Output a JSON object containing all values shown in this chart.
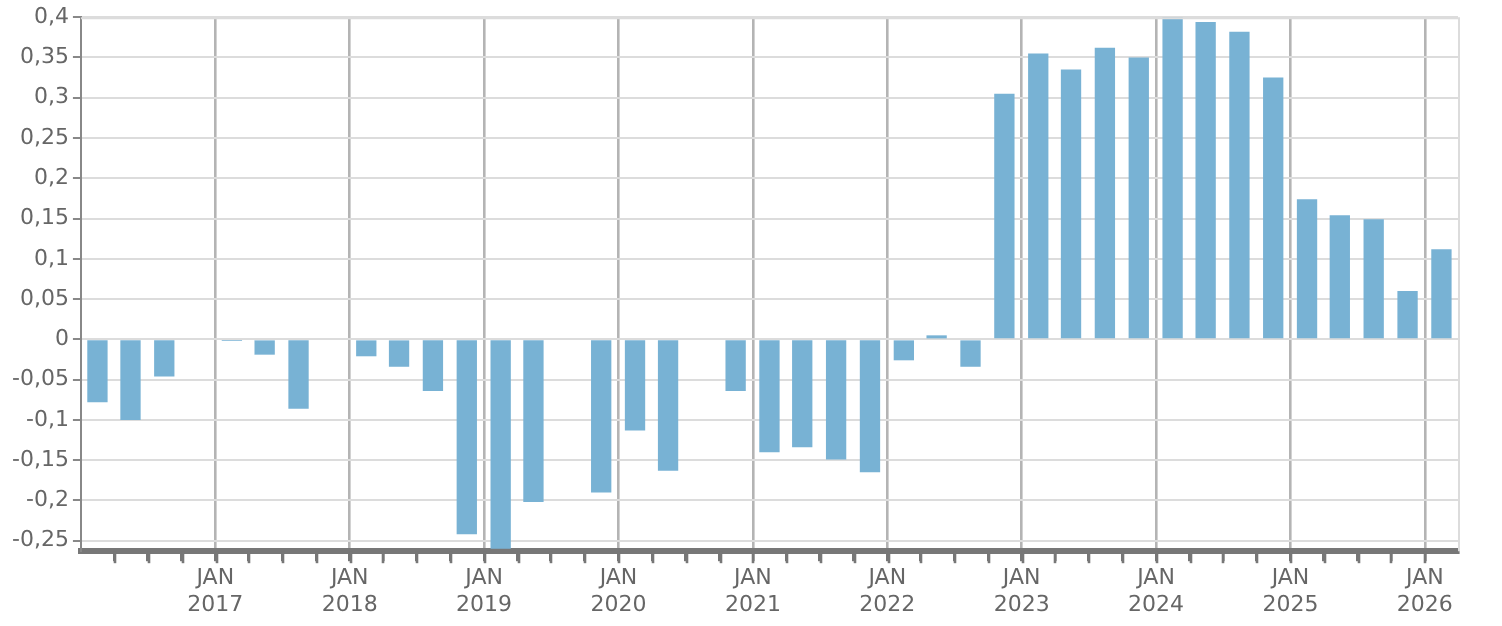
{
  "chart_data": {
    "type": "bar",
    "x": [
      "2016-02-15",
      "2016-05-15",
      "2016-08-15",
      "2016-11-15",
      "2017-02-15",
      "2017-05-15",
      "2017-08-15",
      "2017-11-15",
      "2018-02-15",
      "2018-05-15",
      "2018-08-15",
      "2018-11-15",
      "2019-02-15",
      "2019-05-15",
      "2019-08-15",
      "2019-11-15",
      "2020-02-15",
      "2020-05-15",
      "2020-08-15",
      "2020-11-15",
      "2021-02-15",
      "2021-05-15",
      "2021-08-15",
      "2021-11-15",
      "2022-02-15",
      "2022-05-15",
      "2022-08-15",
      "2022-11-15",
      "2023-02-15",
      "2023-05-15",
      "2023-08-15",
      "2023-11-15",
      "2024-02-15",
      "2024-05-15",
      "2024-08-15",
      "2024-11-15",
      "2025-02-15",
      "2025-05-15",
      "2025-08-15",
      "2025-11-15",
      "2026-02-15"
    ],
    "values": [
      -0.078,
      -0.1,
      -0.046,
      null,
      -0.002,
      -0.019,
      -0.086,
      null,
      -0.021,
      -0.034,
      -0.064,
      -0.242,
      -0.26,
      -0.202,
      null,
      -0.19,
      -0.113,
      -0.163,
      null,
      -0.064,
      -0.14,
      -0.134,
      -0.149,
      -0.165,
      -0.026,
      0.005,
      -0.034,
      0.305,
      0.355,
      0.335,
      0.362,
      0.35,
      0.4,
      0.394,
      0.382,
      0.325,
      0.174,
      0.154,
      0.149,
      0.06,
      0.112
    ],
    "color": "#78b2d4",
    "xlim": [
      "2016-01",
      "2026-04"
    ],
    "xticks": [
      {
        "value": "2016-04",
        "label": null
      },
      {
        "value": "2016-07",
        "label": null
      },
      {
        "value": "2016-10",
        "label": null
      },
      {
        "value": "2017-01",
        "label": "JAN 2017"
      },
      {
        "value": "2017-04",
        "label": null
      },
      {
        "value": "2017-07",
        "label": null
      },
      {
        "value": "2017-10",
        "label": null
      },
      {
        "value": "2018-01",
        "label": "JAN 2018"
      },
      {
        "value": "2018-04",
        "label": null
      },
      {
        "value": "2018-07",
        "label": null
      },
      {
        "value": "2018-10",
        "label": null
      },
      {
        "value": "2019-01",
        "label": "JAN 2019"
      },
      {
        "value": "2019-04",
        "label": null
      },
      {
        "value": "2019-07",
        "label": null
      },
      {
        "value": "2019-10",
        "label": null
      },
      {
        "value": "2020-01",
        "label": "JAN 2020"
      },
      {
        "value": "2020-04",
        "label": null
      },
      {
        "value": "2020-07",
        "label": null
      },
      {
        "value": "2020-10",
        "label": null
      },
      {
        "value": "2021-01",
        "label": "JAN 2021"
      },
      {
        "value": "2021-04",
        "label": null
      },
      {
        "value": "2021-07",
        "label": null
      },
      {
        "value": "2021-10",
        "label": null
      },
      {
        "value": "2022-01",
        "label": "JAN 2022"
      },
      {
        "value": "2022-04",
        "label": null
      },
      {
        "value": "2022-07",
        "label": null
      },
      {
        "value": "2022-10",
        "label": null
      },
      {
        "value": "2023-01",
        "label": "JAN 2023"
      },
      {
        "value": "2023-04",
        "label": null
      },
      {
        "value": "2023-07",
        "label": null
      },
      {
        "value": "2023-10",
        "label": null
      },
      {
        "value": "2024-01",
        "label": "JAN 2024"
      },
      {
        "value": "2024-04",
        "label": null
      },
      {
        "value": "2024-07",
        "label": null
      },
      {
        "value": "2024-10",
        "label": null
      },
      {
        "value": "2025-01",
        "label": "JAN 2025"
      },
      {
        "value": "2025-04",
        "label": null
      },
      {
        "value": "2025-07",
        "label": null
      },
      {
        "value": "2025-10",
        "label": null
      },
      {
        "value": "2026-01",
        "label": "JAN 2026"
      }
    ],
    "ylim": [
      -0.263,
      0.4
    ],
    "yticks": [
      {
        "value": -0.25,
        "label": "-0,25"
      },
      {
        "value": -0.2,
        "label": "-0,2"
      },
      {
        "value": -0.15,
        "label": "-0,15"
      },
      {
        "value": -0.1,
        "label": "-0,1"
      },
      {
        "value": -0.05,
        "label": "-0,05"
      },
      {
        "value": 0,
        "label": "0"
      },
      {
        "value": 0.05,
        "label": "0,05"
      },
      {
        "value": 0.1,
        "label": "0,1"
      },
      {
        "value": 0.15,
        "label": "0,15"
      },
      {
        "value": 0.2,
        "label": "0,2"
      },
      {
        "value": 0.25,
        "label": "0,25"
      },
      {
        "value": 0.3,
        "label": "0,3"
      },
      {
        "value": 0.35,
        "label": "0,35"
      },
      {
        "value": 0.4,
        "label": "0,4"
      }
    ],
    "grid": true,
    "legend": false
  }
}
